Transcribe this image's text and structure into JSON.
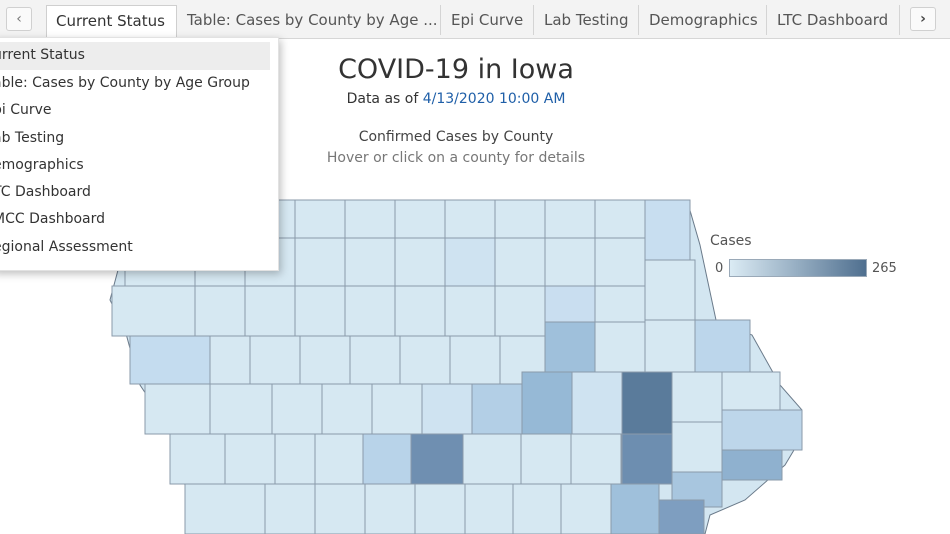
{
  "tabs": [
    {
      "label": "Current Status",
      "active": true
    },
    {
      "label": "Table: Cases by County by Age ..."
    },
    {
      "label": "Epi Curve"
    },
    {
      "label": "Lab Testing"
    },
    {
      "label": "Demographics"
    },
    {
      "label": "LTC Dashboard"
    }
  ],
  "nav": {
    "prev_icon": "chevron-left-icon",
    "next_icon": "chevron-right-icon"
  },
  "dropdown": {
    "items": [
      "urrent Status",
      "able: Cases by County by Age Group",
      "pi Curve",
      "ab Testing",
      "emographics",
      "TC Dashboard",
      "MCC Dashboard",
      "egional Assessment"
    ]
  },
  "header": {
    "title": "COVID-19 in Iowa",
    "data_as_of_prefix": "Data as of ",
    "data_as_of_value": "4/13/2020 10:00 AM",
    "subtitle": "Confirmed Cases by County",
    "hint": "Hover or click on a county for details"
  },
  "legend": {
    "title": "Cases",
    "min": "0",
    "max": "265",
    "color_low": "#dbebf4",
    "color_high": "#4f6f8f"
  },
  "colors": {
    "date_blue": "#1f5fa8",
    "date_time": "#8a6a1a"
  }
}
